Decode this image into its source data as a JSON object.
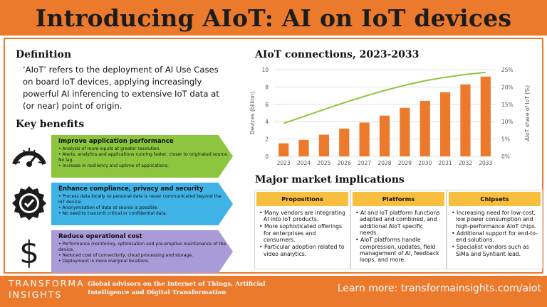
{
  "header": {
    "title": "Introducing AIoT: AI on IoT devices"
  },
  "definition": {
    "heading": "Definition",
    "text": "‘AIoT’ refers to the deployment of AI Use Cases on board IoT devices, applying increasingly powerful AI inferencing to extensive IoT data at (or near) point of origin."
  },
  "key_benefits": {
    "heading": "Key benefits",
    "items": [
      {
        "icon": "speedometer-icon",
        "color": "#8cc63e",
        "title": "Improve application performance",
        "points": [
          "Analysis of more inputs at greater resolution.",
          "Alerts, analytics and applications running faster, closer to originated source. No lag.",
          "Increase in resiliency and uptime of applications."
        ]
      },
      {
        "icon": "checkmark-badge-icon",
        "color": "#3fb3e6",
        "title": "Enhance compliance, privacy and security",
        "points": [
          "Process data locally so personal data is never communicated beyond the IoT device.",
          "Anonymisation of data at source is possible.",
          "No need to transmit critical or confidential data."
        ]
      },
      {
        "icon": "dollar-sign-icon",
        "color": "#a99ad8",
        "title": "Reduce operational cost",
        "points": [
          "Performance monitoring, optimisation and pre-emptive maintenance of the device.",
          "Reduced cost of connectivity, cloud processing and storage.",
          "Deployment in more marginal locations."
        ]
      }
    ]
  },
  "chart_data": {
    "type": "bar",
    "title": "AIoT connections, 2023-2033",
    "categories": [
      "2023",
      "2024",
      "2025",
      "2026",
      "2027",
      "2028",
      "2029",
      "2030",
      "2031",
      "2032",
      "2033"
    ],
    "series": [
      {
        "type": "bar",
        "axis": "left",
        "color": "#ec7a2c",
        "values": [
          1.5,
          1.9,
          2.5,
          3.2,
          3.9,
          4.7,
          5.6,
          6.4,
          7.4,
          8.3,
          9.2
        ]
      },
      {
        "type": "line",
        "axis": "right",
        "color": "#8cc63e",
        "values": [
          9.5,
          11.5,
          13.5,
          15.5,
          17.3,
          19.0,
          20.5,
          21.8,
          22.8,
          23.6,
          24.2
        ]
      }
    ],
    "ylabel": "Devices (billion)",
    "y2label": "AIoT share of IoT (%)",
    "ylim": [
      0,
      10
    ],
    "y2lim": [
      0,
      25
    ],
    "yticks": [
      "0",
      "2",
      "4",
      "6",
      "8",
      "10"
    ],
    "y2ticks": [
      "0%",
      "5%",
      "10%",
      "15%",
      "20%",
      "25%"
    ],
    "grid": true,
    "legend": "none"
  },
  "implications": {
    "heading": "Major market implications",
    "cards": [
      {
        "title": "Propositions",
        "points": [
          "Many vendors are integrating AI into IoT products.",
          "More sophisticated offerings for enterprises and consumers.",
          "Particular adoption related to video analytics."
        ]
      },
      {
        "title": "Platforms",
        "points": [
          "AI and IoT platform functions adapted and combined, and additional AIoT specific needs.",
          "AIoT platforms handle compression, updates, field management of AI, feedback loops, and more."
        ]
      },
      {
        "title": "Chipsets",
        "points": [
          "Increasing need for low-cost, low power consumption and high-performance AIoT chips.",
          "Additional support for end-to-end solutions.",
          "Specialist vendors such as SiMa and Syntiant lead."
        ]
      }
    ]
  },
  "footer": {
    "logo_line1": "TRANSFORMA",
    "logo_line2": "INSIGHTS",
    "tagline": "Global advisors on the Internet of Things, Artificial Intelligence and Digital Transformation",
    "learn_more": "Learn more: transformainsights.com/aiot",
    "accent": "#ec7a2c"
  }
}
